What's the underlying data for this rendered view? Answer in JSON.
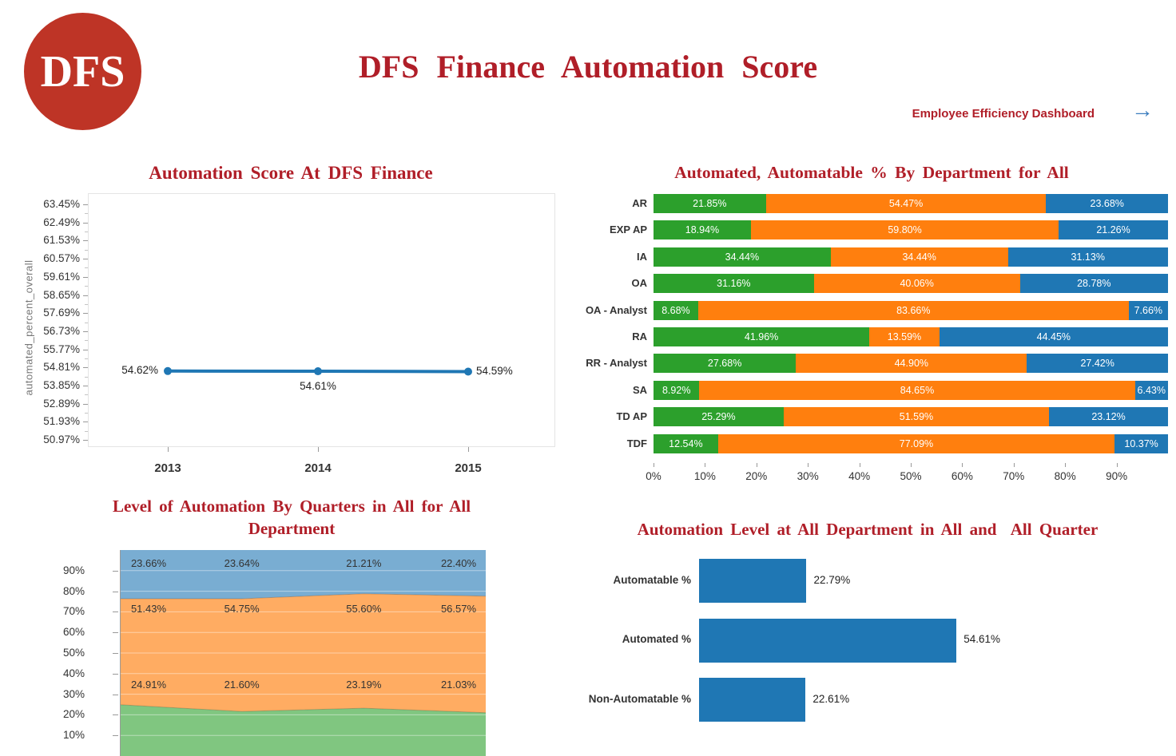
{
  "header": {
    "logo_text": "DFS",
    "title": "DFS Finance Automation Score",
    "link_label": "Employee Efficiency Dashboard",
    "arrow": "→"
  },
  "colors": {
    "accent_red": "#B01E28",
    "logo_red": "#BE3426",
    "blue": "#1F77B4",
    "orange": "#FF7F0E",
    "green": "#2CA02C",
    "arrow_blue": "#3D7EBF",
    "area_blue": "rgba(31,119,180,0.6)",
    "area_orange": "rgba(255,127,14,0.65)",
    "area_green": "rgba(44,160,44,0.6)"
  },
  "chart_data": [
    {
      "id": "automation-score-trend",
      "type": "line",
      "title": "Automation Score At DFS Finance",
      "ylabel": "automated_percent_overall",
      "x": [
        "2013",
        "2014",
        "2015"
      ],
      "values": [
        54.62,
        54.61,
        54.59
      ],
      "point_labels": [
        "54.62%",
        "54.61%",
        "54.59%"
      ],
      "yticks": [
        "63.45%",
        "62.49%",
        "61.53%",
        "60.57%",
        "59.61%",
        "58.65%",
        "57.69%",
        "56.73%",
        "55.77%",
        "54.81%",
        "53.85%",
        "52.89%",
        "51.93%",
        "50.97%"
      ],
      "grid": false,
      "legend": false
    },
    {
      "id": "dept-stacked-bars",
      "type": "bar",
      "variant": "horizontal-stacked",
      "title": "Automated, Automatable % By Department for All",
      "categories": [
        "AR",
        "EXP AP",
        "IA",
        "OA",
        "OA - Analyst",
        "RA",
        "RR - Analyst",
        "SA",
        "TD AP",
        "TDF"
      ],
      "series": [
        {
          "name": "green",
          "values": [
            21.85,
            18.94,
            34.44,
            31.16,
            8.68,
            41.96,
            27.68,
            8.92,
            25.29,
            12.54
          ]
        },
        {
          "name": "orange",
          "values": [
            54.47,
            59.8,
            34.44,
            40.06,
            83.66,
            13.59,
            44.9,
            84.65,
            51.59,
            77.09
          ]
        },
        {
          "name": "blue",
          "values": [
            23.68,
            21.26,
            31.13,
            28.78,
            7.66,
            44.45,
            27.42,
            6.43,
            23.12,
            10.37
          ]
        }
      ],
      "xticks": [
        "0%",
        "10%",
        "20%",
        "30%",
        "40%",
        "50%",
        "60%",
        "70%",
        "80%",
        "90%"
      ],
      "xmax": 100
    },
    {
      "id": "quarterly-area",
      "type": "area",
      "variant": "stacked",
      "title": "Level of Automation By Quarters in All for All Department",
      "x_points": 4,
      "series": [
        {
          "name": "blue",
          "position": "top",
          "values": [
            23.66,
            23.64,
            21.21,
            22.4
          ]
        },
        {
          "name": "orange",
          "position": "middle",
          "values": [
            51.43,
            54.75,
            55.6,
            56.57
          ]
        },
        {
          "name": "green",
          "position": "bottom",
          "values": [
            24.91,
            21.6,
            23.19,
            21.03
          ]
        }
      ],
      "yticks": [
        "90%",
        "80%",
        "70%",
        "60%",
        "50%",
        "40%",
        "30%",
        "20%",
        "10%"
      ],
      "ylim": [
        0,
        100
      ]
    },
    {
      "id": "automation-level-bars",
      "type": "bar",
      "variant": "horizontal",
      "title": "Automation Level at All Department in All and  All Quarter",
      "categories": [
        "Automatable %",
        "Automated %",
        "Non-Automatable %"
      ],
      "values": [
        22.79,
        54.61,
        22.61
      ],
      "value_labels": [
        "22.79%",
        "54.61%",
        "22.61%"
      ]
    }
  ]
}
